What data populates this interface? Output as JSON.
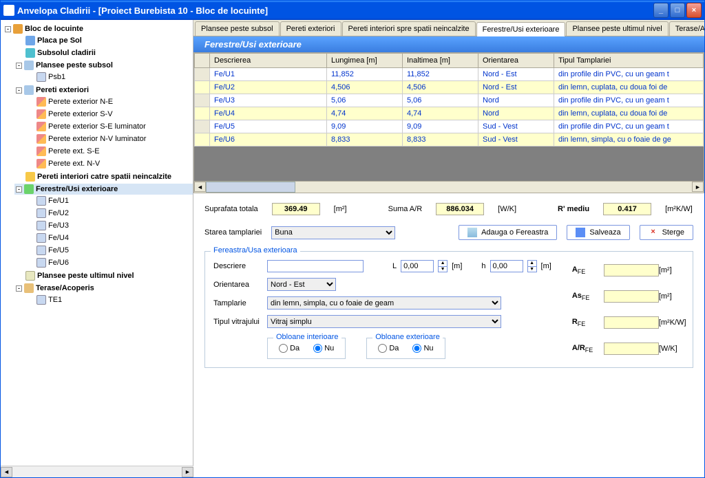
{
  "window": {
    "title": "Anvelopa Cladirii - [Proiect Burebista 10 - Bloc de locuinte]"
  },
  "tree": {
    "root": "Bloc de locuinte",
    "placa": "Placa pe Sol",
    "subsol": "Subsolul cladirii",
    "plansee_sub": "Plansee peste subsol",
    "psb1": "Psb1",
    "pereti_ext": "Pereti exteriori",
    "pe_ne": "Perete exterior N-E",
    "pe_sv": "Perete exterior S-V",
    "pe_se_lum": "Perete exterior S-E luminator",
    "pe_nv_lum": "Perete exterior  N-V luminator",
    "pe_se": "Perete ext. S-E",
    "pe_nv": "Perete ext. N-V",
    "pereti_int": "Pereti interiori catre spatii neincalzite",
    "ferestre": "Ferestre/Usi exterioare",
    "fe": [
      "Fe/U1",
      "Fe/U2",
      "Fe/U3",
      "Fe/U4",
      "Fe/U5",
      "Fe/U6"
    ],
    "plansee_ult": "Plansee peste ultimul nivel",
    "terase": "Terase/Acoperis",
    "te1": "TE1"
  },
  "tabs": {
    "t1": "Plansee peste subsol",
    "t2": "Pereti exteriori",
    "t3": "Pereti interiori spre spatii neincalzite",
    "t4": "Ferestre/Usi exterioare",
    "t5": "Plansee peste ultimul nivel",
    "t6": "Terase/Acoperis"
  },
  "panel": {
    "title": "Ferestre/Usi exterioare"
  },
  "grid": {
    "cols": {
      "c1": "Descrierea",
      "c2": "Lungimea [m]",
      "c3": "Inaltimea [m]",
      "c4": "Orientarea",
      "c5": "Tipul Tamplariei"
    },
    "rows": [
      {
        "d": "Fe/U1",
        "l": "11,852",
        "h": "11,852",
        "o": "Nord - Est",
        "t": "din profile din PVC, cu un geam t"
      },
      {
        "d": "Fe/U2",
        "l": "4,506",
        "h": "4,506",
        "o": "Nord - Est",
        "t": "din lemn, cuplata, cu doua foi de"
      },
      {
        "d": "Fe/U3",
        "l": "5,06",
        "h": "5,06",
        "o": "Nord",
        "t": "din profile din PVC, cu un geam t"
      },
      {
        "d": "Fe/U4",
        "l": "4,74",
        "h": "4,74",
        "o": "Nord",
        "t": "din lemn, cuplata, cu doua foi de"
      },
      {
        "d": "Fe/U5",
        "l": "9,09",
        "h": "9,09",
        "o": "Sud - Vest",
        "t": "din profile din PVC, cu un geam t"
      },
      {
        "d": "Fe/U6",
        "l": "8,833",
        "h": "8,833",
        "o": "Sud - Vest",
        "t": "din lemn, simpla, cu o foaie de ge"
      }
    ]
  },
  "metrics": {
    "supraf_lbl": "Suprafata totala",
    "supraf": "369.49",
    "supraf_u": "[m²]",
    "suma_lbl": "Suma A/R",
    "suma": "886.034",
    "suma_u": "[W/K]",
    "r_lbl": "R' mediu",
    "r": "0.417",
    "r_u": "[m²K/W]"
  },
  "row2": {
    "stare_lbl": "Starea tamplariei",
    "stare": "Buna",
    "add": "Adauga o Fereastra",
    "save": "Salveaza",
    "del": "Sterge"
  },
  "detail": {
    "legend": "Fereastra/Usa exterioara",
    "desc_lbl": "Descriere",
    "desc": "",
    "L_lbl": "L",
    "L": "0,00",
    "L_u": "[m]",
    "h_lbl": "h",
    "h": "0,00",
    "h_u": "[m]",
    "orient_lbl": "Orientarea",
    "orient": "Nord - Est",
    "tamp_lbl": "Tamplarie",
    "tamp": "din lemn, simpla, cu o foaie de geam",
    "vitraj_lbl": "Tipul vitrajului",
    "vitraj": "Vitraj simplu",
    "obl_int": "Obloane interioare",
    "obl_ext": "Obloane exterioare",
    "da": "Da",
    "nu": "Nu",
    "Afe": "A",
    "Afe_u": "[m²]",
    "Asfe": "As",
    "Asfe_u": "[m²]",
    "Rfe": "R",
    "Rfe_u": "[m²K/W]",
    "ARfe": "A/R",
    "ARfe_u": "[W/K]",
    "sub": "FE"
  }
}
